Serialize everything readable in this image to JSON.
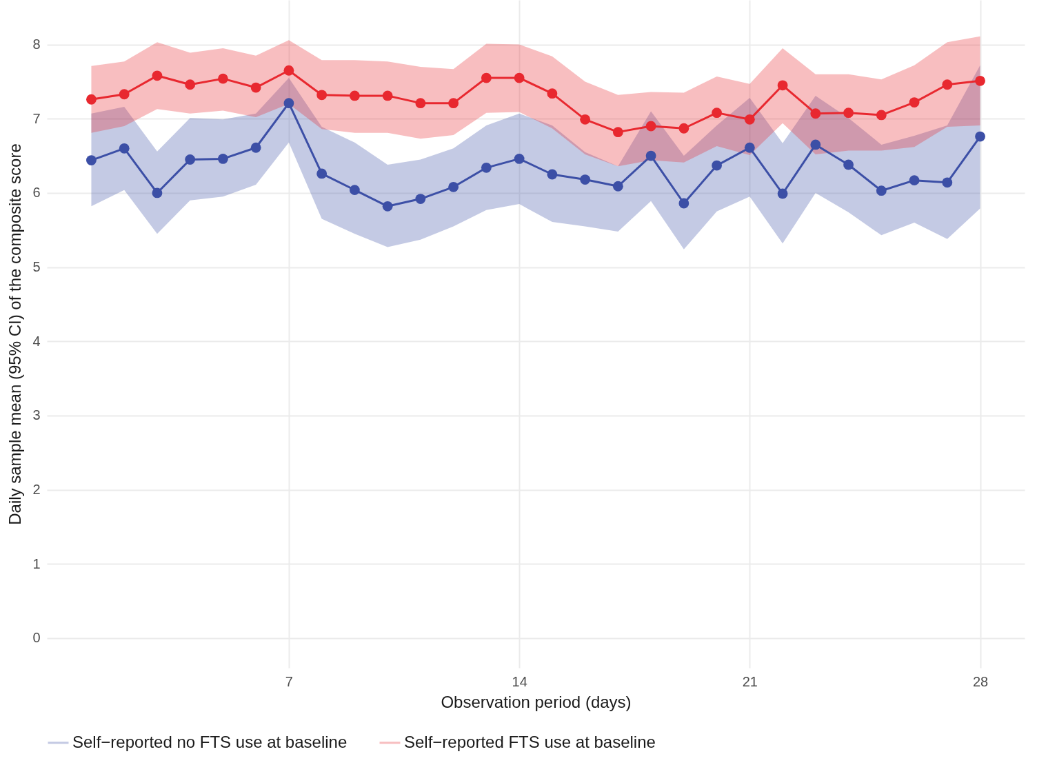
{
  "chart_data": {
    "type": "line",
    "xlabel": "Observation period (days)",
    "ylabel": "Daily sample mean (95% CI) of the composite score",
    "x": [
      1,
      2,
      3,
      4,
      5,
      6,
      7,
      8,
      9,
      10,
      11,
      12,
      13,
      14,
      15,
      16,
      17,
      18,
      19,
      20,
      21,
      22,
      23,
      24,
      25,
      26,
      27,
      28
    ],
    "xlim": [
      -0.35,
      29.35
    ],
    "xticks": [
      7,
      14,
      21,
      28
    ],
    "ylim": [
      -0.4,
      8.6
    ],
    "yticks": [
      0,
      1,
      2,
      3,
      4,
      5,
      6,
      7,
      8
    ],
    "grid": true,
    "legend": "bottom",
    "marker": "circle",
    "line_style": "solid",
    "series": [
      {
        "name": "Self−reported no FTS use at baseline",
        "color": "#3c4fa6",
        "values": [
          6.44,
          6.6,
          6.0,
          6.45,
          6.46,
          6.61,
          7.21,
          6.26,
          6.04,
          5.82,
          5.92,
          6.08,
          6.34,
          6.46,
          6.25,
          6.18,
          6.09,
          6.5,
          5.86,
          6.37,
          6.61,
          5.99,
          6.65,
          6.38,
          6.03,
          6.17,
          6.14,
          6.76
        ],
        "lower": [
          5.82,
          6.04,
          5.45,
          5.9,
          5.95,
          6.11,
          6.68,
          5.65,
          5.45,
          5.27,
          5.37,
          5.55,
          5.77,
          5.85,
          5.61,
          5.55,
          5.48,
          5.89,
          5.24,
          5.75,
          5.95,
          5.32,
          6.0,
          5.74,
          5.43,
          5.6,
          5.38,
          5.79
        ],
        "upper": [
          7.07,
          7.16,
          6.56,
          7.01,
          6.99,
          7.07,
          7.55,
          6.89,
          6.68,
          6.38,
          6.45,
          6.6,
          6.91,
          7.07,
          6.91,
          6.55,
          6.36,
          7.1,
          6.5,
          6.91,
          7.28,
          6.67,
          7.31,
          7.01,
          6.65,
          6.77,
          6.91,
          7.72
        ]
      },
      {
        "name": "Self−reported FTS use at baseline",
        "color": "#e8282f",
        "values": [
          7.26,
          7.33,
          7.58,
          7.46,
          7.54,
          7.42,
          7.65,
          7.32,
          7.31,
          7.31,
          7.21,
          7.21,
          7.55,
          7.55,
          7.34,
          6.99,
          6.82,
          6.9,
          6.87,
          7.08,
          6.99,
          7.45,
          7.07,
          7.08,
          7.05,
          7.22,
          7.46,
          7.51
        ],
        "lower": [
          6.81,
          6.9,
          7.13,
          7.07,
          7.11,
          7.02,
          7.2,
          6.86,
          6.81,
          6.81,
          6.73,
          6.78,
          7.08,
          7.09,
          6.87,
          6.52,
          6.36,
          6.44,
          6.41,
          6.63,
          6.51,
          6.94,
          6.52,
          6.57,
          6.57,
          6.62,
          6.89,
          6.91
        ],
        "upper": [
          7.71,
          7.77,
          8.03,
          7.89,
          7.95,
          7.85,
          8.06,
          7.79,
          7.79,
          7.77,
          7.7,
          7.67,
          8.01,
          8.0,
          7.84,
          7.5,
          7.32,
          7.36,
          7.35,
          7.57,
          7.47,
          7.95,
          7.6,
          7.6,
          7.53,
          7.72,
          8.03,
          8.11
        ]
      }
    ]
  }
}
